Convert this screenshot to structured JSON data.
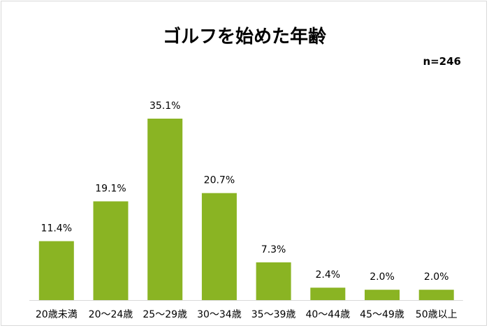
{
  "chart_data": {
    "type": "bar",
    "title": "ゴルフを始めた年齢",
    "annotation": "n=246",
    "categories": [
      "20歳未満",
      "20～24歳",
      "25～29歳",
      "30～34歳",
      "35～39歳",
      "40～44歳",
      "45～49歳",
      "50歳以上"
    ],
    "values": [
      11.4,
      19.1,
      35.1,
      20.7,
      7.3,
      2.4,
      2.0,
      2.0
    ],
    "value_labels": [
      "11.4%",
      "19.1%",
      "35.1%",
      "20.7%",
      "7.3%",
      "2.4%",
      "2.0%",
      "2.0%"
    ],
    "xlabel": "",
    "ylabel": "",
    "ylim": [
      0,
      35.1
    ],
    "grid": false,
    "legend": "none",
    "bar_color": "#8ab423"
  }
}
